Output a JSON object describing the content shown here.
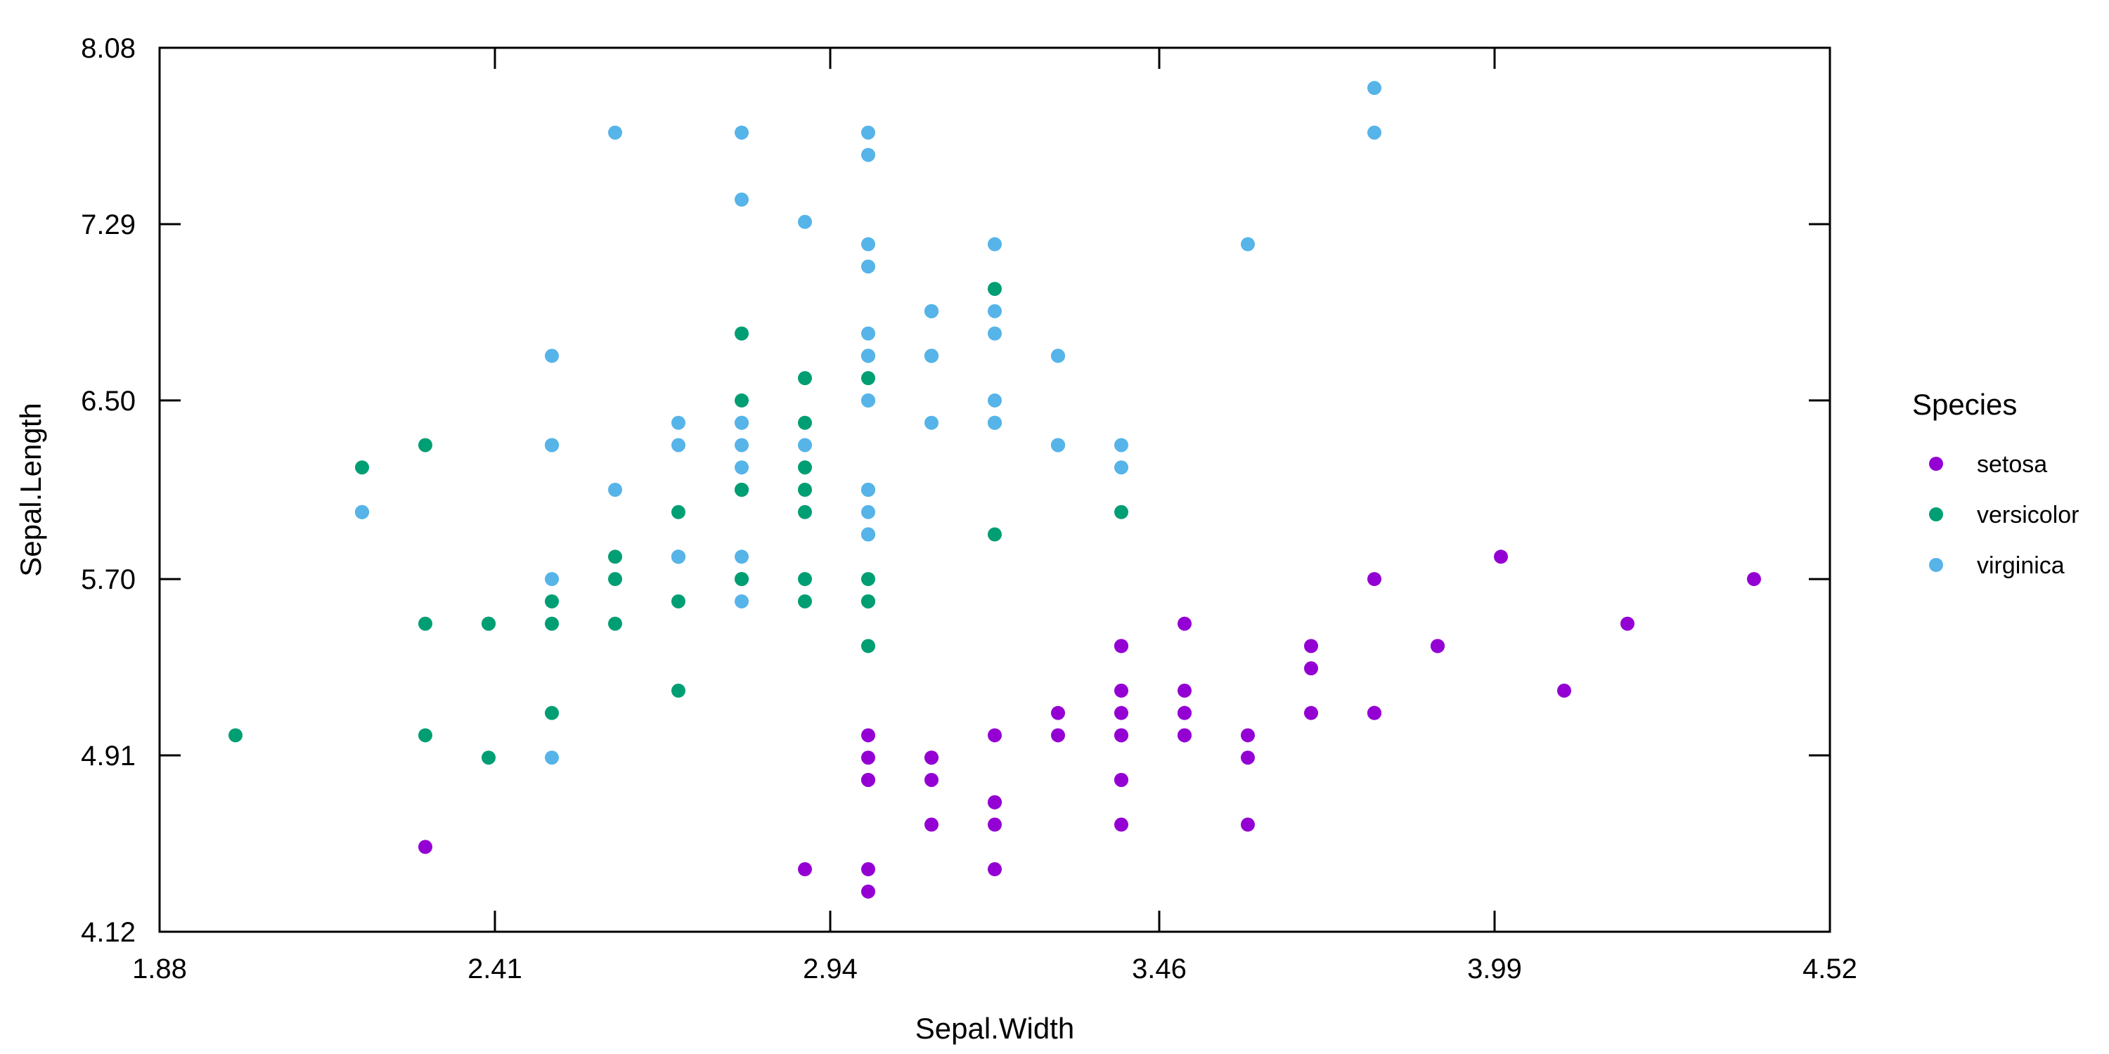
{
  "chart_data": {
    "type": "scatter",
    "xlabel": "Sepal.Width",
    "ylabel": "Sepal.Length",
    "xlim": [
      1.88,
      4.52
    ],
    "ylim": [
      4.12,
      8.08
    ],
    "xticks": [
      "1.88",
      "2.41",
      "2.94",
      "3.46",
      "3.99",
      "4.52"
    ],
    "yticks": [
      "4.12",
      "4.91",
      "5.70",
      "6.50",
      "7.29",
      "8.08"
    ],
    "grid": false,
    "legend_title": "Species",
    "legend_position": "right",
    "series": [
      {
        "name": "setosa",
        "color": "#9400D3",
        "points": [
          [
            3.5,
            5.1
          ],
          [
            3.0,
            4.9
          ],
          [
            3.2,
            4.7
          ],
          [
            3.1,
            4.6
          ],
          [
            3.6,
            5.0
          ],
          [
            3.9,
            5.4
          ],
          [
            3.4,
            4.6
          ],
          [
            3.4,
            5.0
          ],
          [
            2.9,
            4.4
          ],
          [
            3.1,
            4.9
          ],
          [
            3.7,
            5.4
          ],
          [
            3.4,
            4.8
          ],
          [
            3.0,
            4.8
          ],
          [
            3.0,
            4.3
          ],
          [
            4.0,
            5.8
          ],
          [
            4.4,
            5.7
          ],
          [
            3.9,
            5.4
          ],
          [
            3.5,
            5.1
          ],
          [
            3.8,
            5.7
          ],
          [
            3.8,
            5.1
          ],
          [
            3.4,
            5.4
          ],
          [
            3.7,
            5.1
          ],
          [
            3.6,
            4.6
          ],
          [
            3.3,
            5.1
          ],
          [
            3.4,
            4.8
          ],
          [
            3.0,
            5.0
          ],
          [
            3.4,
            5.0
          ],
          [
            3.5,
            5.2
          ],
          [
            3.4,
            5.2
          ],
          [
            3.2,
            4.7
          ],
          [
            3.1,
            4.8
          ],
          [
            3.4,
            5.4
          ],
          [
            4.1,
            5.2
          ],
          [
            4.2,
            5.5
          ],
          [
            3.1,
            4.9
          ],
          [
            3.2,
            5.0
          ],
          [
            3.5,
            5.5
          ],
          [
            3.6,
            4.9
          ],
          [
            3.0,
            4.4
          ],
          [
            3.4,
            5.1
          ],
          [
            3.5,
            5.0
          ],
          [
            2.3,
            4.5
          ],
          [
            3.2,
            4.4
          ],
          [
            3.5,
            5.0
          ],
          [
            3.8,
            5.1
          ],
          [
            3.0,
            4.8
          ],
          [
            3.8,
            5.1
          ],
          [
            3.2,
            4.6
          ],
          [
            3.7,
            5.3
          ],
          [
            3.3,
            5.0
          ]
        ]
      },
      {
        "name": "versicolor",
        "color": "#009E73",
        "points": [
          [
            3.2,
            7.0
          ],
          [
            3.2,
            6.4
          ],
          [
            3.1,
            6.9
          ],
          [
            2.3,
            5.5
          ],
          [
            2.8,
            6.5
          ],
          [
            2.8,
            5.7
          ],
          [
            3.3,
            6.3
          ],
          [
            2.4,
            4.9
          ],
          [
            2.9,
            6.6
          ],
          [
            2.7,
            5.2
          ],
          [
            2.0,
            5.0
          ],
          [
            3.0,
            5.9
          ],
          [
            2.2,
            6.0
          ],
          [
            2.9,
            6.1
          ],
          [
            2.9,
            5.6
          ],
          [
            3.1,
            6.7
          ],
          [
            3.0,
            5.6
          ],
          [
            2.7,
            5.8
          ],
          [
            2.2,
            6.2
          ],
          [
            2.5,
            5.6
          ],
          [
            3.2,
            5.9
          ],
          [
            2.8,
            6.1
          ],
          [
            2.5,
            6.3
          ],
          [
            2.8,
            6.1
          ],
          [
            2.9,
            6.4
          ],
          [
            3.0,
            6.6
          ],
          [
            2.8,
            6.8
          ],
          [
            3.0,
            6.7
          ],
          [
            2.9,
            6.0
          ],
          [
            2.6,
            5.7
          ],
          [
            2.4,
            5.5
          ],
          [
            2.4,
            5.5
          ],
          [
            2.7,
            5.8
          ],
          [
            2.7,
            6.0
          ],
          [
            3.0,
            5.4
          ],
          [
            3.4,
            6.0
          ],
          [
            3.1,
            6.7
          ],
          [
            2.3,
            6.3
          ],
          [
            3.0,
            5.6
          ],
          [
            2.5,
            5.5
          ],
          [
            2.6,
            5.5
          ],
          [
            3.0,
            6.1
          ],
          [
            2.6,
            5.8
          ],
          [
            2.3,
            5.0
          ],
          [
            2.7,
            5.6
          ],
          [
            3.0,
            5.7
          ],
          [
            2.9,
            5.7
          ],
          [
            2.9,
            6.2
          ],
          [
            2.5,
            5.1
          ],
          [
            2.8,
            5.7
          ]
        ]
      },
      {
        "name": "virginica",
        "color": "#56B4E9",
        "points": [
          [
            3.3,
            6.3
          ],
          [
            2.7,
            5.8
          ],
          [
            3.0,
            7.1
          ],
          [
            2.9,
            6.3
          ],
          [
            3.0,
            6.5
          ],
          [
            3.0,
            7.6
          ],
          [
            2.5,
            4.9
          ],
          [
            2.9,
            7.3
          ],
          [
            2.5,
            6.7
          ],
          [
            3.6,
            7.2
          ],
          [
            3.2,
            6.5
          ],
          [
            2.7,
            6.4
          ],
          [
            3.0,
            6.8
          ],
          [
            2.5,
            5.7
          ],
          [
            2.8,
            5.8
          ],
          [
            3.2,
            6.4
          ],
          [
            3.0,
            6.5
          ],
          [
            3.8,
            7.7
          ],
          [
            2.6,
            7.7
          ],
          [
            2.2,
            6.0
          ],
          [
            3.2,
            6.9
          ],
          [
            2.8,
            5.6
          ],
          [
            2.8,
            7.7
          ],
          [
            2.7,
            6.3
          ],
          [
            3.3,
            6.7
          ],
          [
            3.2,
            7.2
          ],
          [
            2.8,
            6.2
          ],
          [
            3.0,
            6.1
          ],
          [
            2.8,
            6.4
          ],
          [
            3.0,
            7.2
          ],
          [
            2.8,
            7.4
          ],
          [
            3.8,
            7.9
          ],
          [
            2.8,
            6.4
          ],
          [
            2.8,
            6.3
          ],
          [
            2.6,
            6.1
          ],
          [
            3.0,
            7.7
          ],
          [
            3.4,
            6.3
          ],
          [
            3.1,
            6.4
          ],
          [
            3.0,
            6.0
          ],
          [
            3.1,
            6.9
          ],
          [
            3.1,
            6.7
          ],
          [
            3.1,
            6.9
          ],
          [
            2.7,
            5.8
          ],
          [
            3.2,
            6.8
          ],
          [
            3.3,
            6.7
          ],
          [
            3.0,
            6.7
          ],
          [
            2.5,
            6.3
          ],
          [
            3.0,
            6.5
          ],
          [
            3.4,
            6.2
          ],
          [
            3.0,
            5.9
          ]
        ]
      }
    ]
  }
}
